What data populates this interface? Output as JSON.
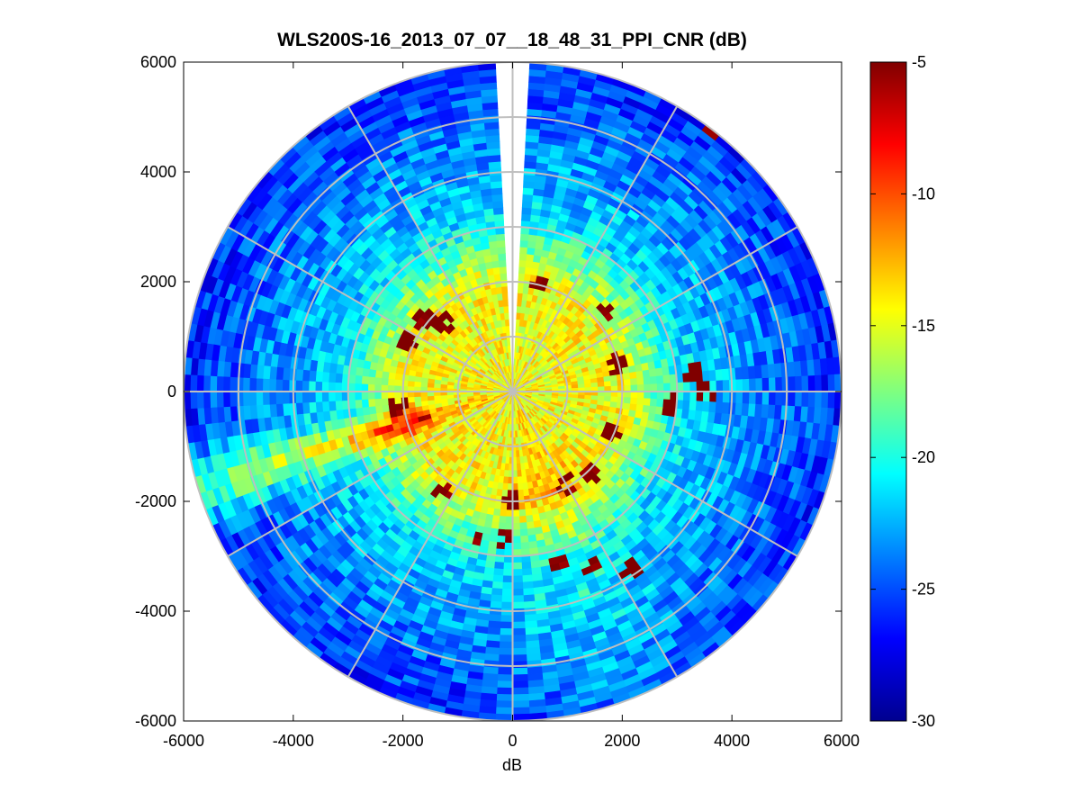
{
  "chart_data": {
    "type": "heatmap",
    "title": "WLS200S-16_2013_07_07__18_48_31_PPI_CNR (dB)",
    "xlabel": "dB",
    "ylabel": "",
    "xlim": [
      -6000,
      6000
    ],
    "ylim": [
      -6000,
      6000
    ],
    "xticks": [
      "-6000",
      "-4000",
      "-2000",
      "0",
      "2000",
      "4000",
      "6000"
    ],
    "yticks": [
      "6000",
      "4000",
      "2000",
      "0",
      "-2000",
      "-4000",
      "-6000"
    ],
    "colorbar": {
      "range": [
        -30,
        -5
      ],
      "ticks": [
        "-5",
        "-10",
        "-15",
        "-20",
        "-25",
        "-30"
      ],
      "colormap": "jet"
    },
    "polar_grid": {
      "ring_radii": [
        1000,
        2000,
        3000,
        4000,
        5000,
        6000
      ],
      "spoke_angles_deg": [
        0,
        30,
        60,
        90,
        120,
        150,
        180,
        210,
        240,
        270,
        300,
        330
      ]
    },
    "scan": {
      "max_range": 6000,
      "azimuth_step_deg": 3,
      "range_step": 120,
      "missing_sector_deg": [
        358,
        2
      ]
    },
    "strong_returns": [
      {
        "x": -1250,
        "y": 1250
      },
      {
        "x": -1950,
        "y": 900
      },
      {
        "x": -1600,
        "y": 1300
      },
      {
        "x": 450,
        "y": 2000
      },
      {
        "x": 1700,
        "y": 1500
      },
      {
        "x": 1900,
        "y": 500
      },
      {
        "x": 1800,
        "y": -750
      },
      {
        "x": 1400,
        "y": -1500
      },
      {
        "x": 1000,
        "y": -1700
      },
      {
        "x": 2900,
        "y": -250
      },
      {
        "x": 3500,
        "y": -50
      },
      {
        "x": 3300,
        "y": 300
      },
      {
        "x": -1300,
        "y": -1850
      },
      {
        "x": -2100,
        "y": -250
      },
      {
        "x": -550,
        "y": -2700
      },
      {
        "x": -150,
        "y": -2650
      },
      {
        "x": 800,
        "y": -3150
      },
      {
        "x": 1500,
        "y": -3200
      },
      {
        "x": 2200,
        "y": -3250
      },
      {
        "x": 3600,
        "y": 4800
      },
      {
        "x": 0,
        "y": -2000
      }
    ]
  }
}
